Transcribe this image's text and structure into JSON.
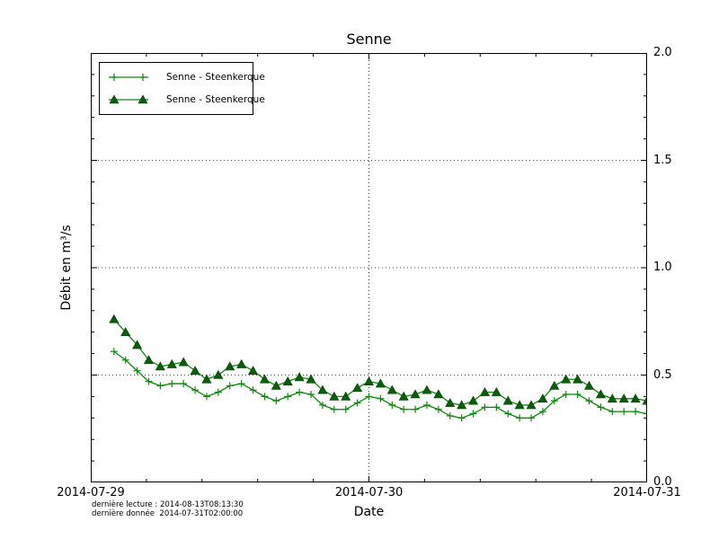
{
  "title": "Senne",
  "axes": {
    "ylabel": "Débit en m³/s",
    "xlabel": "Date",
    "y_tick_labels": [
      "2.0",
      "1.5",
      "1.0",
      "0.5",
      "0.0"
    ],
    "x_tick_labels": [
      "2014-07-29",
      "2014-07-30",
      "2014-07-31"
    ]
  },
  "legend": {
    "entries": [
      {
        "label": "Senne - Steenkerque",
        "marker": "plus"
      },
      {
        "label": "Senne - Steenkerque",
        "marker": "triangle"
      }
    ]
  },
  "footer": {
    "line1": "dernière lecture : 2014-08-13T08:13:30",
    "line2": "dernière donnée  2014-07-31T02:00:00"
  },
  "colors": {
    "line_green": "#0e870e",
    "triangle_fill": "#0b5c0b",
    "triangle_edge": "#063f06",
    "grid": "#000000",
    "axis": "#000000"
  },
  "chart_data": {
    "type": "line",
    "title": "Senne",
    "xlabel": "Date",
    "ylabel": "Débit en m³/s",
    "x_axis": {
      "start": "2014-07-29T00:00",
      "end": "2014-07-31T00:00",
      "major_tick_labels": [
        "2014-07-29",
        "2014-07-30",
        "2014-07-31"
      ],
      "minor_tick_interval_hours": 4.8
    },
    "ylim": [
      0.0,
      2.0
    ],
    "y_major_tick_interval": 0.5,
    "y_minor_tick_interval": 0.1,
    "grid": true,
    "legend_position": "upper left",
    "x_hours_from_2014_07_29T00": [
      2,
      3,
      4,
      5,
      6,
      7,
      8,
      9,
      10,
      11,
      12,
      13,
      14,
      15,
      16,
      17,
      18,
      19,
      20,
      21,
      22,
      23,
      24,
      25,
      26,
      27,
      28,
      29,
      30,
      31,
      32,
      33,
      34,
      35,
      36,
      37,
      38,
      39,
      40,
      41,
      42,
      43,
      44,
      45,
      46,
      47,
      48
    ],
    "series": [
      {
        "name": "Senne - Steenkerque",
        "marker": "plus",
        "values": [
          0.61,
          0.57,
          0.52,
          0.47,
          0.45,
          0.46,
          0.46,
          0.43,
          0.4,
          0.42,
          0.45,
          0.46,
          0.43,
          0.4,
          0.38,
          0.4,
          0.42,
          0.41,
          0.36,
          0.34,
          0.34,
          0.37,
          0.4,
          0.39,
          0.36,
          0.34,
          0.34,
          0.36,
          0.34,
          0.31,
          0.3,
          0.32,
          0.35,
          0.35,
          0.32,
          0.3,
          0.3,
          0.33,
          0.38,
          0.41,
          0.41,
          0.38,
          0.35,
          0.33,
          0.33,
          0.33,
          0.32
        ]
      },
      {
        "name": "Senne - Steenkerque",
        "marker": "triangle",
        "values": [
          0.76,
          0.7,
          0.64,
          0.57,
          0.54,
          0.55,
          0.56,
          0.52,
          0.48,
          0.5,
          0.54,
          0.55,
          0.52,
          0.48,
          0.45,
          0.47,
          0.49,
          0.48,
          0.43,
          0.4,
          0.4,
          0.44,
          0.47,
          0.46,
          0.43,
          0.4,
          0.41,
          0.43,
          0.41,
          0.37,
          0.36,
          0.38,
          0.42,
          0.42,
          0.38,
          0.36,
          0.36,
          0.39,
          0.45,
          0.48,
          0.48,
          0.45,
          0.41,
          0.39,
          0.39,
          0.39,
          0.38
        ]
      }
    ]
  }
}
